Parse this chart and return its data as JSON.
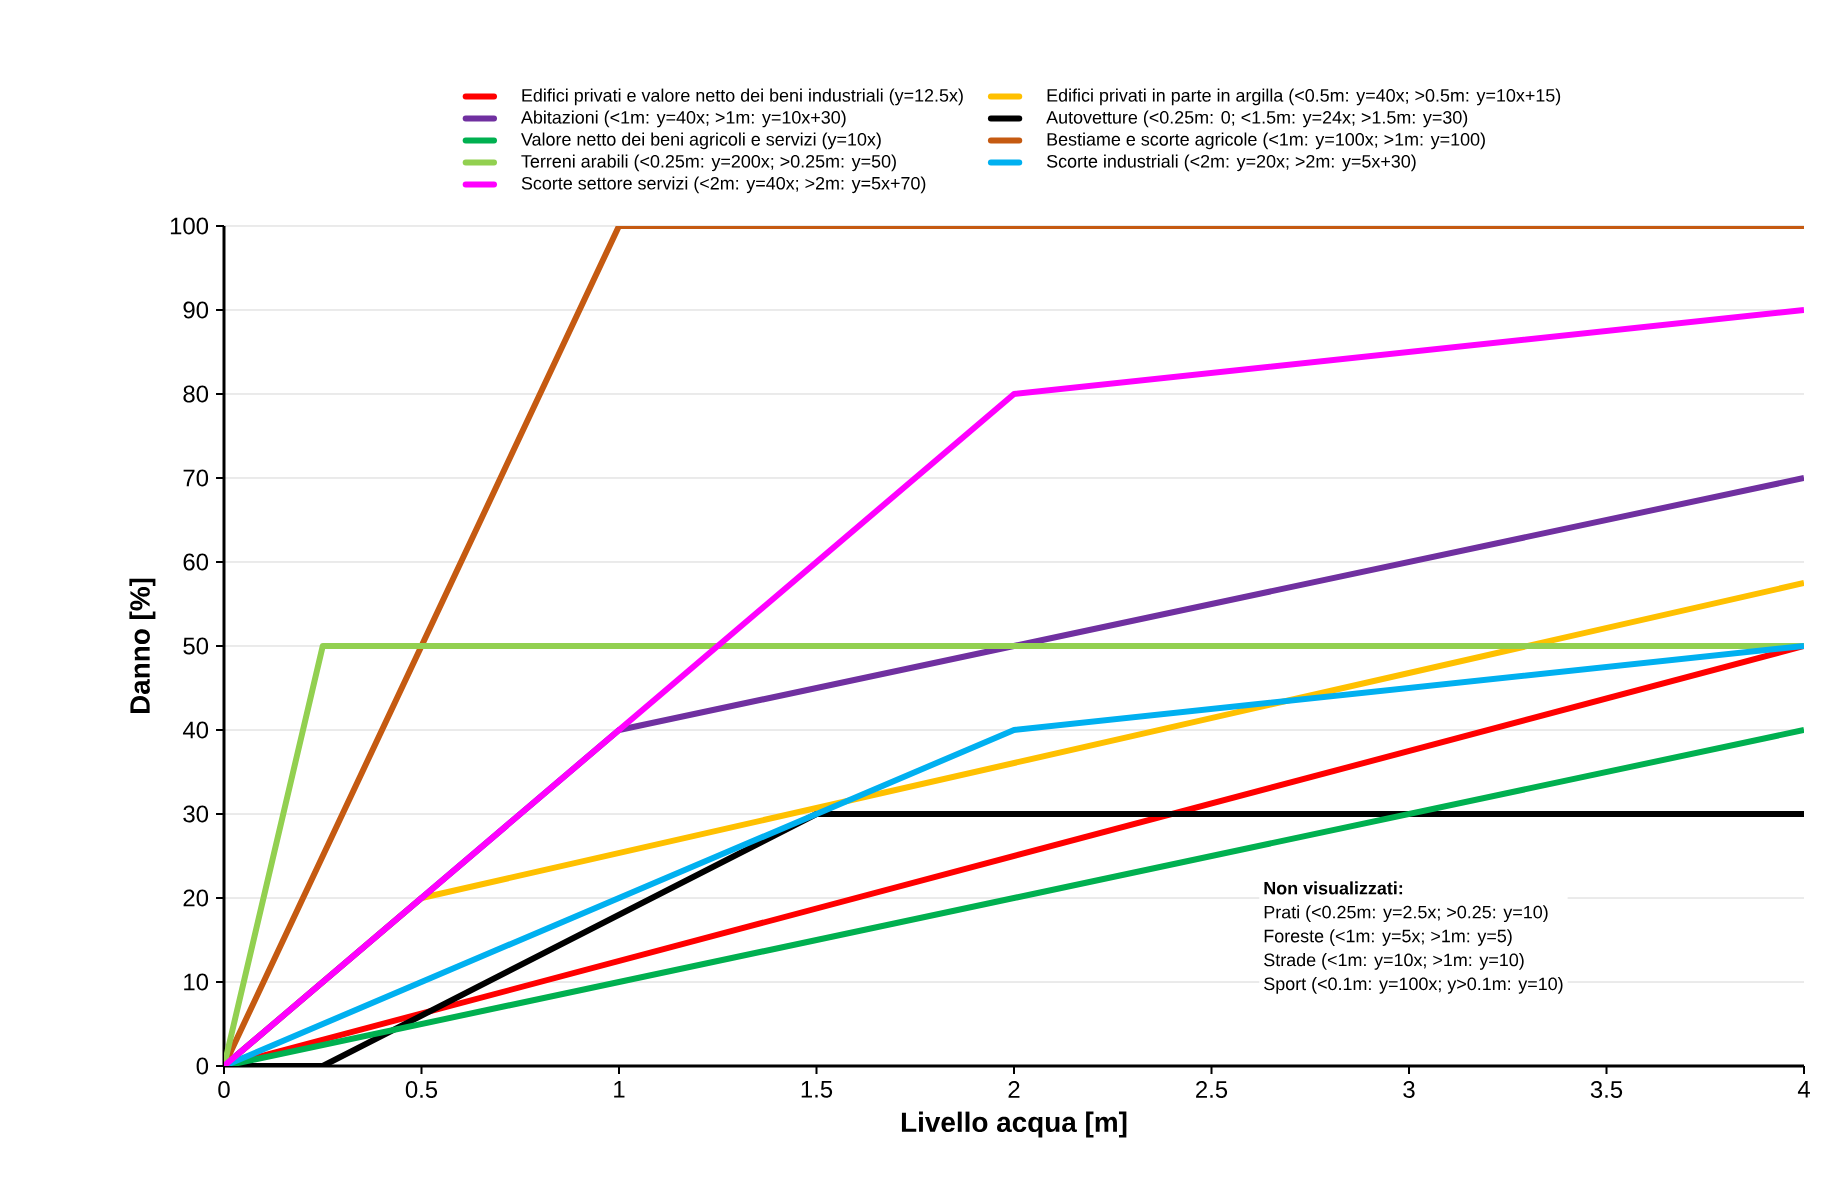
{
  "chart_data": {
    "type": "line",
    "xlabel": "Livello acqua [m]",
    "ylabel": "Danno [%]",
    "xlim": [
      0,
      4
    ],
    "ylim": [
      0,
      100
    ],
    "xticks": [
      0,
      0.5,
      1,
      1.5,
      2,
      2.5,
      3,
      3.5,
      4
    ],
    "yticks": [
      0,
      10,
      20,
      30,
      40,
      50,
      60,
      70,
      80,
      90,
      100
    ],
    "grid": "y",
    "legend": "top",
    "marker": "none",
    "line_style": "solid",
    "series": [
      {
        "name": "Edifici privati e valore netto dei beni industriali (y=12.5x)",
        "color": "#ff0000",
        "x": [
          0,
          4
        ],
        "values": [
          0,
          50
        ]
      },
      {
        "name": "Edifici privati in parte in argilla (<0.5m: y=40x; >0.5m: y=10x+15)",
        "color": "#ffc000",
        "x": [
          0,
          0.5,
          4
        ],
        "values": [
          0,
          20,
          57.5
        ]
      },
      {
        "name": "Abitazioni (<1m: y=40x; >1m: y=10x+30)",
        "color": "#7030a0",
        "x": [
          0,
          1,
          4
        ],
        "values": [
          0,
          40,
          70
        ]
      },
      {
        "name": "Autovetture (<0.25m: 0; <1.5m: y=24x; >1.5m: y=30)",
        "color": "#000000",
        "x": [
          0,
          0.25,
          1.5,
          4
        ],
        "values": [
          0,
          0,
          30,
          30
        ]
      },
      {
        "name": "Valore netto dei beni agricoli e servizi (y=10x)",
        "color": "#00b050",
        "x": [
          0,
          4
        ],
        "values": [
          0,
          40
        ]
      },
      {
        "name": "Bestiame e scorte agricole (<1m: y=100x; >1m: y=100)",
        "color": "#c55a11",
        "x": [
          0,
          1,
          4
        ],
        "values": [
          0,
          100,
          100
        ]
      },
      {
        "name": "Terreni arabili  (<0.25m: y=200x; >0.25m: y=50)",
        "color": "#92d050",
        "x": [
          0,
          0.25,
          4
        ],
        "values": [
          0,
          50,
          50
        ]
      },
      {
        "name": "Scorte industriali (<2m: y=20x; >2m: y=5x+30)",
        "color": "#00b0f0",
        "x": [
          0,
          2,
          4
        ],
        "values": [
          0,
          40,
          50
        ]
      },
      {
        "name": "Scorte settore servizi (<2m: y=40x; >2m: y=5x+70)",
        "color": "#ff00ff",
        "x": [
          0,
          2,
          4
        ],
        "values": [
          0,
          80,
          90
        ]
      }
    ],
    "annotations": [
      "Non visualizzati:",
      "Prati (<0.25m: y=2.5x; >0.25: y=10)",
      "Foreste (<1m: y=5x; >1m: y=5)",
      "Strade (<1m: y=10x; >1m: y=10)",
      "Sport (<0.1m: y=100x; y>0.1m: y=10)"
    ]
  }
}
